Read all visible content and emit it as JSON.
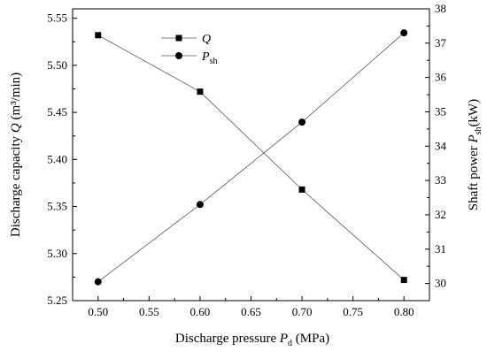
{
  "chart_data": {
    "type": "line",
    "xlabel_prefix": "Discharge pressure ",
    "xlabel_symbol": "P",
    "xlabel_subscript": "d",
    "xlabel_suffix": " (MPa)",
    "ylabel_left_prefix": "Discharge capacity ",
    "ylabel_left_symbol": "Q",
    "ylabel_left_suffix": " (m³/min)",
    "ylabel_right_prefix": "Shaft power ",
    "ylabel_right_symbol": "P",
    "ylabel_right_subscript": "sh",
    "ylabel_right_suffix": "(kW)",
    "xlim": [
      0.475,
      0.825
    ],
    "ylim_left": [
      5.25,
      5.56
    ],
    "ylim_right": [
      29.5,
      38
    ],
    "x_ticks": [
      "0.50",
      "0.55",
      "0.60",
      "0.65",
      "0.70",
      "0.75",
      "0.80"
    ],
    "y_left_ticks": [
      "5.25",
      "5.30",
      "5.35",
      "5.40",
      "5.45",
      "5.50",
      "5.55"
    ],
    "y_right_ticks": [
      "30",
      "31",
      "32",
      "33",
      "34",
      "35",
      "36",
      "37",
      "38"
    ],
    "series": [
      {
        "name": "Q",
        "axis": "left",
        "marker": "square",
        "x": [
          0.5,
          0.6,
          0.7,
          0.8
        ],
        "values": [
          5.532,
          5.472,
          5.368,
          5.272
        ]
      },
      {
        "name": "P",
        "name_subscript": "sh",
        "axis": "right",
        "marker": "circle",
        "x": [
          0.5,
          0.6,
          0.7,
          0.8
        ],
        "values": [
          30.05,
          32.3,
          34.7,
          37.3
        ]
      }
    ],
    "legend_position": "top-left",
    "grid": false
  }
}
